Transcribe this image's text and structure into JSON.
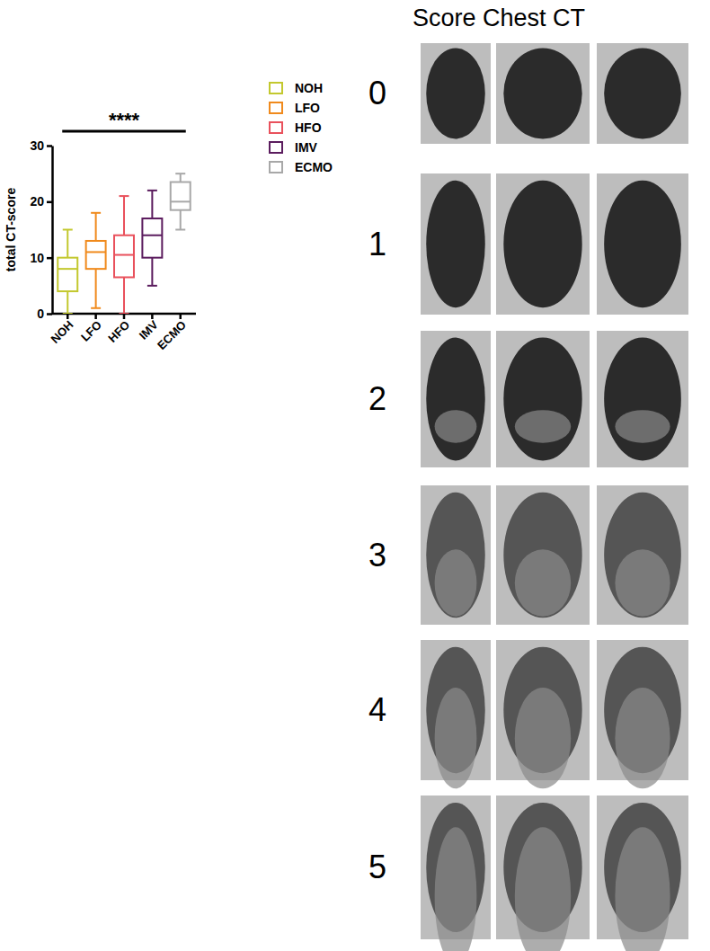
{
  "chart_data": {
    "type": "box",
    "y_label": "total CT-score",
    "categories": [
      "NOH",
      "LFO",
      "HFO",
      "IMV",
      "ECMO"
    ],
    "colors": [
      "#c3c82e",
      "#f08a1c",
      "#e9515c",
      "#5b1c5e",
      "#a8a8a8"
    ],
    "min": [
      0,
      1,
      0,
      5,
      15
    ],
    "q1": [
      4,
      8,
      6.5,
      10,
      18.5
    ],
    "median": [
      8,
      11,
      10.5,
      14,
      20
    ],
    "q3": [
      10,
      13,
      14,
      17,
      23.5
    ],
    "max": [
      15,
      18,
      21,
      22,
      25
    ],
    "ylim": [
      0,
      30
    ],
    "yticks": [
      0,
      10,
      20,
      30
    ],
    "annotation": "****",
    "legend": "right"
  },
  "figure": {
    "title": "Score Chest CT",
    "score_labels": [
      "0",
      "1",
      "2",
      "3",
      "4",
      "5"
    ]
  }
}
